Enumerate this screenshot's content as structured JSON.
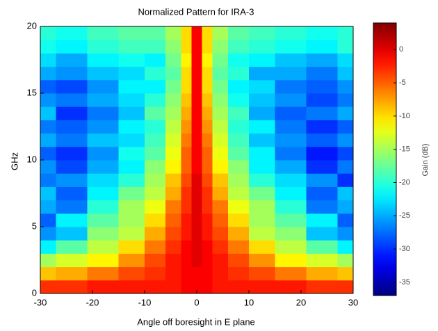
{
  "chart_data": {
    "type": "heatmap",
    "title": "Normalized Pattern for IRA-3",
    "x_label": "Angle off boresight in E plane",
    "y_label": "GHz",
    "colorbar_label": "Gain (dB)",
    "colormap": "jet",
    "x": [
      -30,
      -24,
      -18,
      -12,
      -8,
      -4,
      -2,
      0,
      2,
      4,
      8,
      12,
      18,
      24,
      30
    ],
    "y": [
      0.5,
      1.5,
      2.5,
      3.5,
      4.5,
      5.5,
      6.5,
      7.5,
      8.5,
      9.5,
      10.5,
      11.5,
      12.5,
      13.5,
      14.5,
      15.5,
      16.5,
      17.5,
      18.5,
      19.5
    ],
    "values": [
      [
        -3,
        -3,
        -2,
        -2,
        -2,
        -2,
        -1,
        -1,
        -1,
        -2,
        -2,
        -2,
        -2,
        -3,
        -3
      ],
      [
        -9,
        -8,
        -6,
        -4,
        -3,
        -2,
        -1,
        -1,
        -1,
        -2,
        -3,
        -4,
        -6,
        -8,
        -9
      ],
      [
        -15,
        -13,
        -11,
        -7,
        -4,
        -2,
        -1,
        0,
        -1,
        -2,
        -4,
        -7,
        -11,
        -13,
        -15
      ],
      [
        -22,
        -18,
        -14,
        -10,
        -6,
        -3,
        -1,
        0,
        -1,
        -3,
        -6,
        -10,
        -14,
        -18,
        -22
      ],
      [
        -26,
        -24,
        -16,
        -14,
        -8,
        -4,
        -2,
        0,
        -2,
        -4,
        -8,
        -14,
        -16,
        -24,
        -26
      ],
      [
        -28,
        -22,
        -18,
        -15,
        -10,
        -5,
        -2,
        0,
        -2,
        -5,
        -10,
        -15,
        -18,
        -22,
        -28
      ],
      [
        -25,
        -27,
        -20,
        -15,
        -12,
        -6,
        -3,
        0,
        -3,
        -6,
        -12,
        -15,
        -20,
        -27,
        -25
      ],
      [
        -24,
        -28,
        -22,
        -17,
        -14,
        -8,
        -3,
        0,
        -3,
        -8,
        -14,
        -17,
        -22,
        -28,
        -24
      ],
      [
        -27,
        -26,
        -23,
        -20,
        -15,
        -9,
        -4,
        0,
        -4,
        -9,
        -15,
        -20,
        -23,
        -26,
        -30
      ],
      [
        -26,
        -29,
        -25,
        -22,
        -16,
        -11,
        -5,
        -1,
        -5,
        -11,
        -16,
        -22,
        -25,
        -30,
        -27
      ],
      [
        -28,
        -30,
        -26,
        -21,
        -18,
        -12,
        -5,
        -1,
        -5,
        -12,
        -18,
        -22,
        -27,
        -31,
        -29
      ],
      [
        -25,
        -27,
        -24,
        -23,
        -19,
        -13,
        -6,
        -1,
        -6,
        -13,
        -19,
        -24,
        -26,
        -28,
        -26
      ],
      [
        -27,
        -28,
        -26,
        -22,
        -20,
        -14,
        -7,
        -1,
        -7,
        -14,
        -20,
        -22,
        -27,
        -30,
        -28
      ],
      [
        -24,
        -30,
        -27,
        -24,
        -18,
        -15,
        -8,
        -1,
        -8,
        -15,
        -19,
        -25,
        -28,
        -27,
        -25
      ],
      [
        -26,
        -27,
        -25,
        -23,
        -20,
        -16,
        -9,
        -1,
        -9,
        -16,
        -21,
        -24,
        -26,
        -29,
        -27
      ],
      [
        -28,
        -29,
        -26,
        -22,
        -22,
        -17,
        -10,
        -1,
        -10,
        -17,
        -22,
        -23,
        -27,
        -28,
        -26
      ],
      [
        -25,
        -26,
        -24,
        -23,
        -20,
        -18,
        -10,
        -1,
        -10,
        -18,
        -20,
        -25,
        -25,
        -27,
        -24
      ],
      [
        -23,
        -25,
        -22,
        -21,
        -22,
        -17,
        -11,
        -1,
        -11,
        -17,
        -21,
        -22,
        -24,
        -25,
        -23
      ],
      [
        -21,
        -22,
        -20,
        -19,
        -19,
        -16,
        -10,
        -1,
        -10,
        -16,
        -19,
        -20,
        -21,
        -22,
        -20
      ],
      [
        -20,
        -21,
        -19,
        -18,
        -18,
        -15,
        -10,
        -1,
        -10,
        -15,
        -18,
        -19,
        -20,
        -21,
        -20
      ]
    ],
    "xlim": [
      -30,
      30
    ],
    "xticks": [
      -30,
      -20,
      -10,
      0,
      10,
      20,
      30
    ],
    "ylim": [
      0,
      20
    ],
    "yticks": [
      0,
      5,
      10,
      15,
      20
    ],
    "clim": [
      -37,
      4
    ],
    "cticks": [
      -35,
      -30,
      -25,
      -20,
      -15,
      -10,
      -5,
      0
    ]
  }
}
